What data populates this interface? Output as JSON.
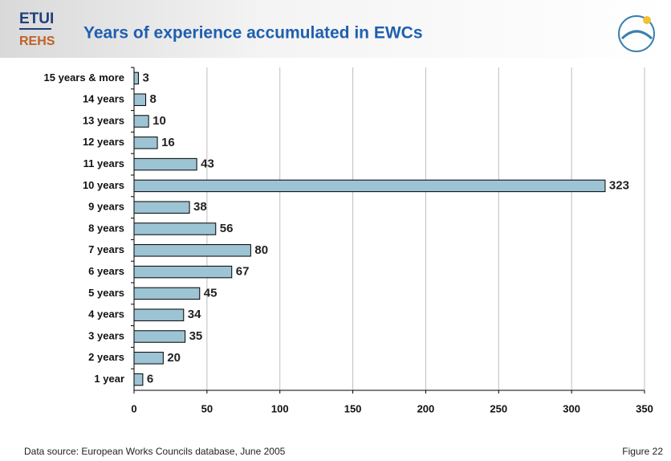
{
  "header": {
    "logo_top": "ETUI",
    "logo_bottom": "REHS"
  },
  "chart_data": {
    "type": "hbar",
    "title": "Years of experience accumulated in EWCs",
    "categories": [
      "15 years & more",
      "14 years",
      "13 years",
      "12 years",
      "11 years",
      "10 years",
      "9 years",
      "8 years",
      "7 years",
      "6 years",
      "5 years",
      "4 years",
      "3 years",
      "2 years",
      "1 year"
    ],
    "values": [
      3,
      8,
      10,
      16,
      43,
      323,
      38,
      56,
      80,
      67,
      45,
      34,
      35,
      20,
      6
    ],
    "color": "#9cc4d4",
    "xlim": [
      0,
      350
    ],
    "xticks": [
      0,
      50,
      100,
      150,
      200,
      250,
      300,
      350
    ],
    "grid": true
  },
  "footer": {
    "source": "Data source: European Works Councils database, June 2005",
    "figure": "Figure 22"
  }
}
